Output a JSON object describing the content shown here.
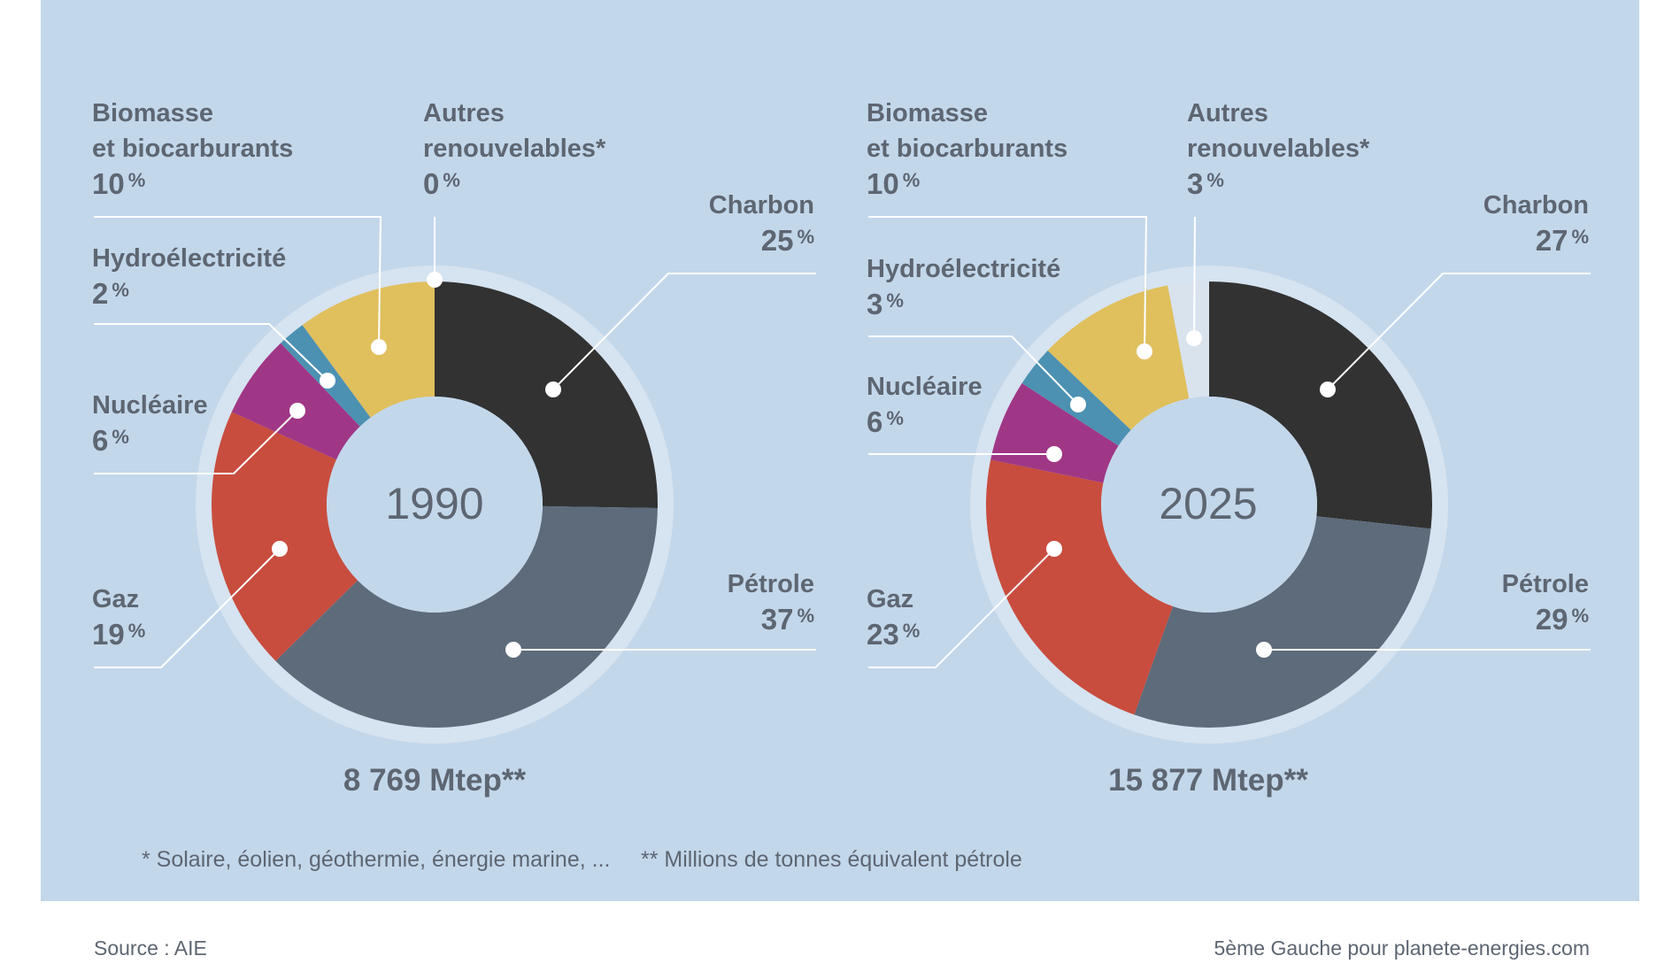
{
  "chart_data": [
    {
      "type": "pie",
      "title": "1990",
      "total": "8 769 Mtep**",
      "slices": [
        {
          "name": "Charbon",
          "value": 25,
          "pct_label": "25",
          "color": "#323232"
        },
        {
          "name": "Pétrole",
          "value": 37,
          "pct_label": "37",
          "color": "#5d6b7b"
        },
        {
          "name": "Gaz",
          "value": 19,
          "pct_label": "19",
          "color": "#c84d3e"
        },
        {
          "name": "Nucléaire",
          "value": 6,
          "pct_label": "6",
          "color": "#a03786"
        },
        {
          "name": "Hydroélectricité",
          "value": 2,
          "pct_label": "2",
          "color": "#4c91b2"
        },
        {
          "name": "Biomasse et biocarburants",
          "value": 10,
          "pct_label": "10",
          "color": "#e0bf5d"
        },
        {
          "name": "Autres renouvelables*",
          "value": 0,
          "pct_label": "0",
          "color": "#d9e3ee"
        }
      ]
    },
    {
      "type": "pie",
      "title": "2025",
      "total": "15 877 Mtep**",
      "slices": [
        {
          "name": "Charbon",
          "value": 27,
          "pct_label": "27",
          "color": "#323232"
        },
        {
          "name": "Pétrole",
          "value": 29,
          "pct_label": "29",
          "color": "#5d6b7b"
        },
        {
          "name": "Gaz",
          "value": 23,
          "pct_label": "23",
          "color": "#c84d3e"
        },
        {
          "name": "Nucléaire",
          "value": 6,
          "pct_label": "6",
          "color": "#a03786"
        },
        {
          "name": "Hydroélectricité",
          "value": 3,
          "pct_label": "3",
          "color": "#4c91b2"
        },
        {
          "name": "Biomasse et biocarburants",
          "value": 10,
          "pct_label": "10",
          "color": "#e0bf5d"
        },
        {
          "name": "Autres renouvelables*",
          "value": 3,
          "pct_label": "3",
          "color": "#d9e3ee"
        }
      ]
    }
  ],
  "labels": {
    "biomasse_line1": "Biomasse",
    "biomasse_line2": "et biocarburants",
    "autres_line1": "Autres",
    "autres_line2": "renouvelables*",
    "hydro": "Hydroélectricité",
    "nucleaire": "Nucléaire",
    "gaz": "Gaz",
    "charbon": "Charbon",
    "petrole": "Pétrole",
    "pct_sign": "%"
  },
  "notes": {
    "note1": "* Solaire, éolien, géothermie, énergie marine, ...",
    "note2": "** Millions de tonnes équivalent pétrole"
  },
  "footer": {
    "source": "Source : AIE",
    "credit": "5ème Gauche pour planete-energies.com"
  },
  "colors": {
    "background": "#c3d7eb",
    "ring": "#d6e3f0",
    "text": "#5d6672",
    "leader": "#ffffff"
  }
}
